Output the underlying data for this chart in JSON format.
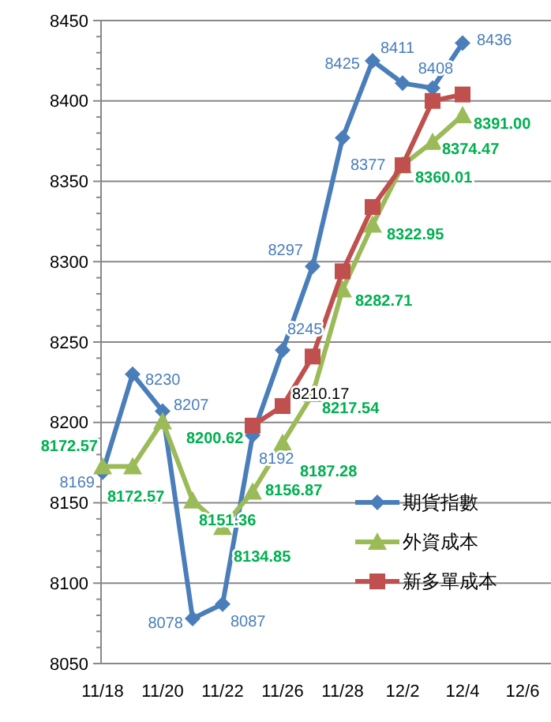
{
  "chart_data": {
    "type": "line",
    "categories": [
      "11/18",
      null,
      "11/20",
      null,
      "11/22",
      null,
      "11/26",
      null,
      "11/28",
      null,
      "12/2",
      null,
      "12/4",
      null,
      "12/6"
    ],
    "ylim": [
      8050,
      8450
    ],
    "yticks": [
      8050,
      8100,
      8150,
      8200,
      8250,
      8300,
      8350,
      8400,
      8450
    ],
    "grid": "y",
    "legend": "right",
    "line_style": "solid",
    "series": [
      {
        "name": "期貨指數",
        "color": "#4a7ebb",
        "marker": "diamond",
        "values": [
          8169,
          8230,
          8207,
          8078,
          8087,
          8192,
          8245,
          8297,
          8377,
          8425,
          8411,
          8408,
          8436,
          null,
          null
        ],
        "value_labels": [
          "8169",
          "8230",
          "8207",
          "8078",
          "8087",
          "8192",
          "8245",
          "8297",
          "8377",
          "8425",
          "8411",
          "8408",
          "8436",
          null,
          null
        ]
      },
      {
        "name": "外資成本",
        "color": "#9bbb59",
        "marker": "triangle",
        "values": [
          8172.57,
          8172.57,
          8200.62,
          8151.36,
          8134.85,
          8156.87,
          8187.28,
          8217.54,
          8282.71,
          8322.95,
          8360.01,
          8374.47,
          8391.0,
          null,
          null
        ],
        "value_labels": [
          "8172.57",
          "8172.57",
          "8200.62",
          "8151.36",
          "8134.85",
          "8156.87",
          "8187.28",
          "8217.54",
          "8282.71",
          "8322.95",
          "8360.01",
          "8374.47",
          "8391.00",
          null,
          null
        ]
      },
      {
        "name": "新多單成本",
        "color": "#c0504d",
        "marker": "square",
        "values": [
          null,
          null,
          null,
          null,
          null,
          8198,
          8210.17,
          8241,
          8294,
          8334,
          8360,
          8400,
          8404,
          null,
          null
        ],
        "value_labels": [
          null,
          null,
          null,
          null,
          null,
          null,
          "8210.17",
          null,
          null,
          null,
          null,
          null,
          null,
          null,
          null
        ]
      }
    ]
  }
}
